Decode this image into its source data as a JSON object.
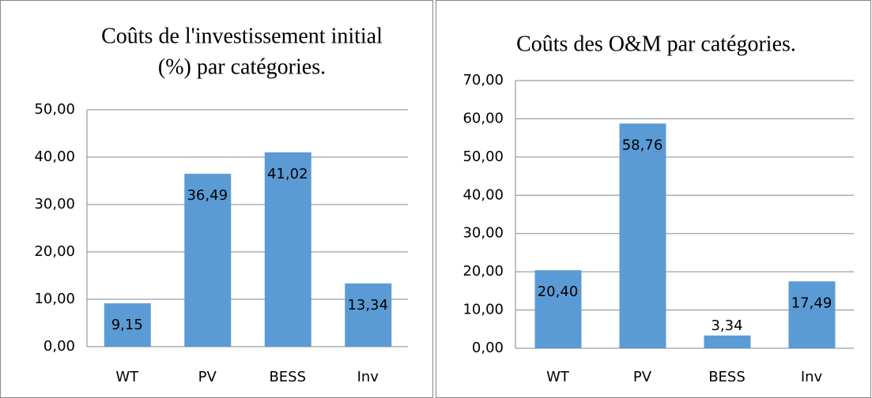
{
  "chart_data": [
    {
      "type": "bar",
      "title": [
        "Coûts de l'investissement initial",
        "(%) par catégories."
      ],
      "categories": [
        "WT",
        "PV",
        "BESS",
        "Inv"
      ],
      "values": [
        9.15,
        36.49,
        41.02,
        13.34
      ],
      "value_labels": [
        "9,15",
        "36,49",
        "41,02",
        "13,34"
      ],
      "color": "#5b9bd5",
      "ylim": [
        0,
        50
      ],
      "yticks": [
        {
          "value": 0,
          "label": "0,00"
        },
        {
          "value": 10,
          "label": "10,00"
        },
        {
          "value": 20,
          "label": "20,00"
        },
        {
          "value": 30,
          "label": "30,00"
        },
        {
          "value": 40,
          "label": "40,00"
        },
        {
          "value": 50,
          "label": "50,00"
        }
      ],
      "grid": true
    },
    {
      "type": "bar",
      "title": [
        "Coûts des O&M par catégories."
      ],
      "categories": [
        "WT",
        "PV",
        "BESS",
        "Inv"
      ],
      "values": [
        20.4,
        58.76,
        3.34,
        17.49
      ],
      "value_labels": [
        "20,40",
        "58,76",
        "3,34",
        "17,49"
      ],
      "color": "#5b9bd5",
      "ylim": [
        0,
        70
      ],
      "yticks": [
        {
          "value": 0,
          "label": "0,00"
        },
        {
          "value": 10,
          "label": "10,00"
        },
        {
          "value": 20,
          "label": "20,00"
        },
        {
          "value": 30,
          "label": "30,00"
        },
        {
          "value": 40,
          "label": "40,00"
        },
        {
          "value": 50,
          "label": "50,00"
        },
        {
          "value": 60,
          "label": "60,00"
        },
        {
          "value": 70,
          "label": "70,00"
        }
      ],
      "grid": true
    }
  ]
}
